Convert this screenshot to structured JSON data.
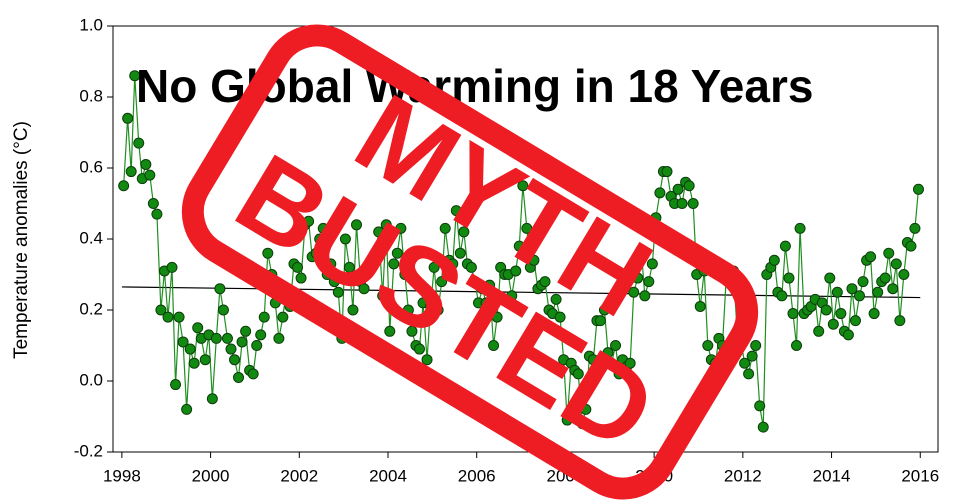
{
  "chart_data": {
    "type": "line",
    "title": "No Global Warming in 18 Years",
    "stamp": [
      "MYTH",
      "BUSTED"
    ],
    "y_label": "Temperature anomalies (°C)",
    "color": "#1f8f1f",
    "marker_color": "#128a12",
    "stamp_color": "#ee1c23",
    "xlim": [
      1997.8,
      2016.4
    ],
    "ylim": [
      -0.2,
      1.0
    ],
    "xticks": [
      1998,
      2000,
      2002,
      2004,
      2006,
      2008,
      2010,
      2012,
      2014,
      2016
    ],
    "yticks": [
      -0.2,
      {
        "value": 0.0,
        "label": "0.0"
      },
      0.2,
      0.4,
      0.6,
      0.8,
      {
        "value": 1.0,
        "label": "1.0"
      }
    ],
    "trend": {
      "x": [
        1998,
        2016
      ],
      "values": [
        0.265,
        0.235
      ],
      "color": "#000000"
    },
    "x": [
      1998.04,
      1998.13,
      1998.21,
      1998.29,
      1998.38,
      1998.46,
      1998.54,
      1998.63,
      1998.71,
      1998.79,
      1998.88,
      1998.96,
      1999.04,
      1999.13,
      1999.21,
      1999.29,
      1999.38,
      1999.46,
      1999.54,
      1999.63,
      1999.71,
      1999.79,
      1999.88,
      1999.96,
      2000.04,
      2000.13,
      2000.21,
      2000.29,
      2000.38,
      2000.46,
      2000.54,
      2000.63,
      2000.71,
      2000.79,
      2000.88,
      2000.96,
      2001.04,
      2001.13,
      2001.21,
      2001.29,
      2001.38,
      2001.46,
      2001.54,
      2001.63,
      2001.71,
      2001.79,
      2001.88,
      2001.96,
      2002.04,
      2002.13,
      2002.21,
      2002.29,
      2002.38,
      2002.46,
      2002.54,
      2002.63,
      2002.71,
      2002.79,
      2002.88,
      2002.96,
      2003.04,
      2003.13,
      2003.21,
      2003.29,
      2003.38,
      2003.46,
      2003.54,
      2003.63,
      2003.71,
      2003.79,
      2003.88,
      2003.96,
      2004.04,
      2004.13,
      2004.21,
      2004.29,
      2004.38,
      2004.46,
      2004.54,
      2004.63,
      2004.71,
      2004.79,
      2004.88,
      2004.96,
      2005.04,
      2005.13,
      2005.21,
      2005.29,
      2005.38,
      2005.46,
      2005.54,
      2005.63,
      2005.71,
      2005.79,
      2005.88,
      2005.96,
      2006.04,
      2006.13,
      2006.21,
      2006.29,
      2006.38,
      2006.46,
      2006.54,
      2006.63,
      2006.71,
      2006.79,
      2006.88,
      2006.96,
      2007.04,
      2007.13,
      2007.21,
      2007.29,
      2007.38,
      2007.46,
      2007.54,
      2007.63,
      2007.71,
      2007.79,
      2007.88,
      2007.96,
      2008.04,
      2008.13,
      2008.21,
      2008.29,
      2008.38,
      2008.46,
      2008.54,
      2008.63,
      2008.71,
      2008.79,
      2008.88,
      2008.96,
      2009.04,
      2009.13,
      2009.21,
      2009.29,
      2009.38,
      2009.46,
      2009.54,
      2009.63,
      2009.71,
      2009.79,
      2009.88,
      2009.96,
      2010.04,
      2010.13,
      2010.21,
      2010.29,
      2010.38,
      2010.46,
      2010.54,
      2010.63,
      2010.71,
      2010.79,
      2010.88,
      2010.96,
      2011.04,
      2011.13,
      2011.21,
      2011.29,
      2011.38,
      2011.46,
      2011.54,
      2011.63,
      2011.71,
      2011.79,
      2011.88,
      2011.96,
      2012.04,
      2012.13,
      2012.21,
      2012.29,
      2012.38,
      2012.46,
      2012.54,
      2012.63,
      2012.71,
      2012.79,
      2012.88,
      2012.96,
      2013.04,
      2013.13,
      2013.21,
      2013.29,
      2013.38,
      2013.46,
      2013.54,
      2013.63,
      2013.71,
      2013.79,
      2013.88,
      2013.96,
      2014.04,
      2014.13,
      2014.21,
      2014.29,
      2014.38,
      2014.46,
      2014.54,
      2014.63,
      2014.71,
      2014.79,
      2014.88,
      2014.96,
      2015.04,
      2015.13,
      2015.21,
      2015.29,
      2015.38,
      2015.46,
      2015.54,
      2015.63,
      2015.71,
      2015.79,
      2015.88,
      2015.96
    ],
    "values": [
      0.55,
      0.74,
      0.59,
      0.86,
      0.67,
      0.57,
      0.61,
      0.58,
      0.5,
      0.47,
      0.2,
      0.31,
      0.18,
      0.32,
      -0.01,
      0.18,
      0.11,
      -0.08,
      0.09,
      0.05,
      0.15,
      0.12,
      0.06,
      0.13,
      -0.05,
      0.12,
      0.26,
      0.2,
      0.12,
      0.09,
      0.06,
      0.01,
      0.11,
      0.14,
      0.03,
      0.02,
      0.1,
      0.13,
      0.18,
      0.36,
      0.3,
      0.22,
      0.12,
      0.18,
      0.26,
      0.21,
      0.33,
      0.32,
      0.29,
      0.44,
      0.45,
      0.35,
      0.36,
      0.4,
      0.43,
      0.3,
      0.33,
      0.28,
      0.25,
      0.12,
      0.4,
      0.32,
      0.2,
      0.44,
      0.28,
      0.26,
      0.31,
      0.33,
      0.35,
      0.42,
      0.24,
      0.44,
      0.14,
      0.33,
      0.36,
      0.43,
      0.3,
      0.2,
      0.14,
      0.1,
      0.09,
      0.22,
      0.06,
      0.21,
      0.32,
      0.2,
      0.28,
      0.43,
      0.34,
      0.33,
      0.48,
      0.36,
      0.42,
      0.33,
      0.32,
      0.28,
      0.22,
      0.26,
      0.22,
      0.27,
      0.1,
      0.18,
      0.32,
      0.3,
      0.3,
      0.24,
      0.31,
      0.38,
      0.55,
      0.43,
      0.32,
      0.34,
      0.26,
      0.27,
      0.28,
      0.2,
      0.19,
      0.23,
      0.18,
      0.06,
      -0.11,
      0.05,
      0.03,
      0.02,
      -0.12,
      -0.08,
      0.07,
      0.06,
      0.17,
      0.17,
      0.2,
      0.08,
      0.05,
      0.1,
      0.02,
      0.06,
      0.04,
      0.05,
      0.25,
      0.29,
      0.37,
      0.24,
      0.28,
      0.33,
      0.46,
      0.53,
      0.59,
      0.59,
      0.52,
      0.5,
      0.54,
      0.5,
      0.56,
      0.55,
      0.5,
      0.3,
      0.21,
      0.31,
      0.1,
      0.06,
      0.05,
      0.12,
      0.1,
      0.3,
      0.28,
      0.31,
      0.12,
      0.11,
      0.05,
      0.02,
      0.07,
      0.1,
      -0.07,
      -0.13,
      0.3,
      0.32,
      0.34,
      0.25,
      0.24,
      0.38,
      0.29,
      0.19,
      0.1,
      0.43,
      0.19,
      0.2,
      0.21,
      0.23,
      0.14,
      0.22,
      0.2,
      0.29,
      0.16,
      0.25,
      0.19,
      0.14,
      0.13,
      0.26,
      0.17,
      0.24,
      0.28,
      0.34,
      0.35,
      0.19,
      0.25,
      0.28,
      0.29,
      0.36,
      0.26,
      0.33,
      0.17,
      0.3,
      0.39,
      0.38,
      0.43,
      0.54
    ]
  }
}
